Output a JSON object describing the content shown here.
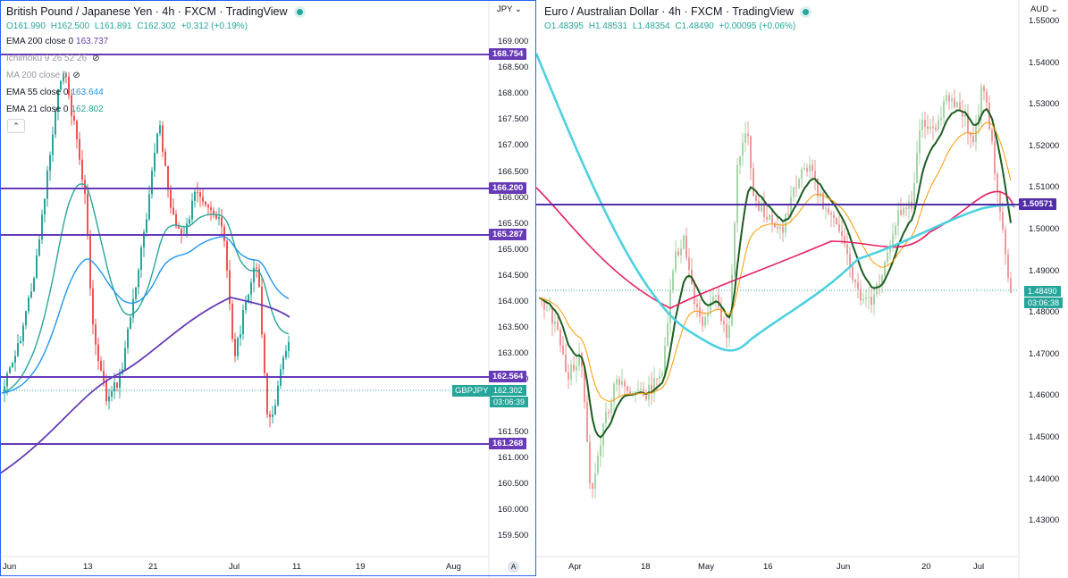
{
  "left": {
    "title": "British Pound / Japanese Yen · 4h · FXCM · TradingView",
    "ohlc": {
      "o": "O161.990",
      "h": "H162.500",
      "l": "L161.891",
      "c": "C162.302",
      "chg": "+0.312 (+0.19%)"
    },
    "indicators": [
      {
        "name": "EMA 200 close 0",
        "value": "163.737",
        "color": "#673ab7",
        "faded": false
      },
      {
        "name": "Ichimoku 9 26 52 26",
        "value": "",
        "color": "#9598a1",
        "faded": true,
        "hidden": true
      },
      {
        "name": "MA 200 close 0",
        "value": "",
        "color": "#9598a1",
        "faded": true,
        "hidden": true
      },
      {
        "name": "EMA 55 close 0",
        "value": "163.644",
        "color": "#2196f3",
        "faded": false
      },
      {
        "name": "EMA 21 close 0",
        "value": "162.802",
        "color": "#26a69a",
        "faded": false
      }
    ],
    "collapse_icon": "chevron-up-icon",
    "currency": "JPY",
    "y_ticks": [
      "169.000",
      "168.500",
      "168.000",
      "167.500",
      "167.000",
      "166.500",
      "166.000",
      "165.500",
      "165.000",
      "164.500",
      "164.000",
      "163.500",
      "163.000",
      "162.500",
      "162.000",
      "161.500",
      "161.000",
      "160.500",
      "160.000",
      "159.500"
    ],
    "x_ticks": [
      "Jun",
      "13",
      "21",
      "Jul",
      "11",
      "19",
      "Aug"
    ],
    "levels": [
      {
        "label": "168.754"
      },
      {
        "label": "166.200"
      },
      {
        "label": "165.287"
      },
      {
        "label": "162.564"
      },
      {
        "label": "161.268"
      }
    ],
    "last_price": {
      "symbol": "GBPJPY",
      "price": "162.302",
      "countdown": "03:06:39"
    },
    "auto_label": "A",
    "colors": {
      "level": "#673ab7",
      "up": "#26a69a",
      "down": "#ef5350",
      "ema200": "#673ab7",
      "ema55": "#2196f3",
      "ema21": "#26a69a"
    }
  },
  "right": {
    "title": "Euro / Australian Dollar · 4h · FXCM · TradingView",
    "ohlc": {
      "o": "O1.48395",
      "h": "H1.48531",
      "l": "L1.48354",
      "c": "C1.48490",
      "chg": "+0.00095 (+0.06%)"
    },
    "currency": "AUD",
    "y_ticks": [
      "1.55000",
      "1.54000",
      "1.53000",
      "1.52000",
      "1.51000",
      "1.50000",
      "1.49000",
      "1.48000",
      "1.47000",
      "1.46000",
      "1.45000",
      "1.44000",
      "1.43000"
    ],
    "x_ticks": [
      "Apr",
      "18",
      "May",
      "16",
      "Jun",
      "20",
      "Jul"
    ],
    "levels": [
      {
        "label": "1.50571"
      }
    ],
    "last_price": {
      "price": "1.48490",
      "countdown": "03:06:38"
    },
    "colors": {
      "level": "#512da8",
      "up": "#a5d6a7",
      "down": "#ef9a9a",
      "ema200": "#4dd0e1",
      "ema100": "#e91e63",
      "ema21": "#ff9800",
      "ema9": "#1b5e20"
    }
  }
}
